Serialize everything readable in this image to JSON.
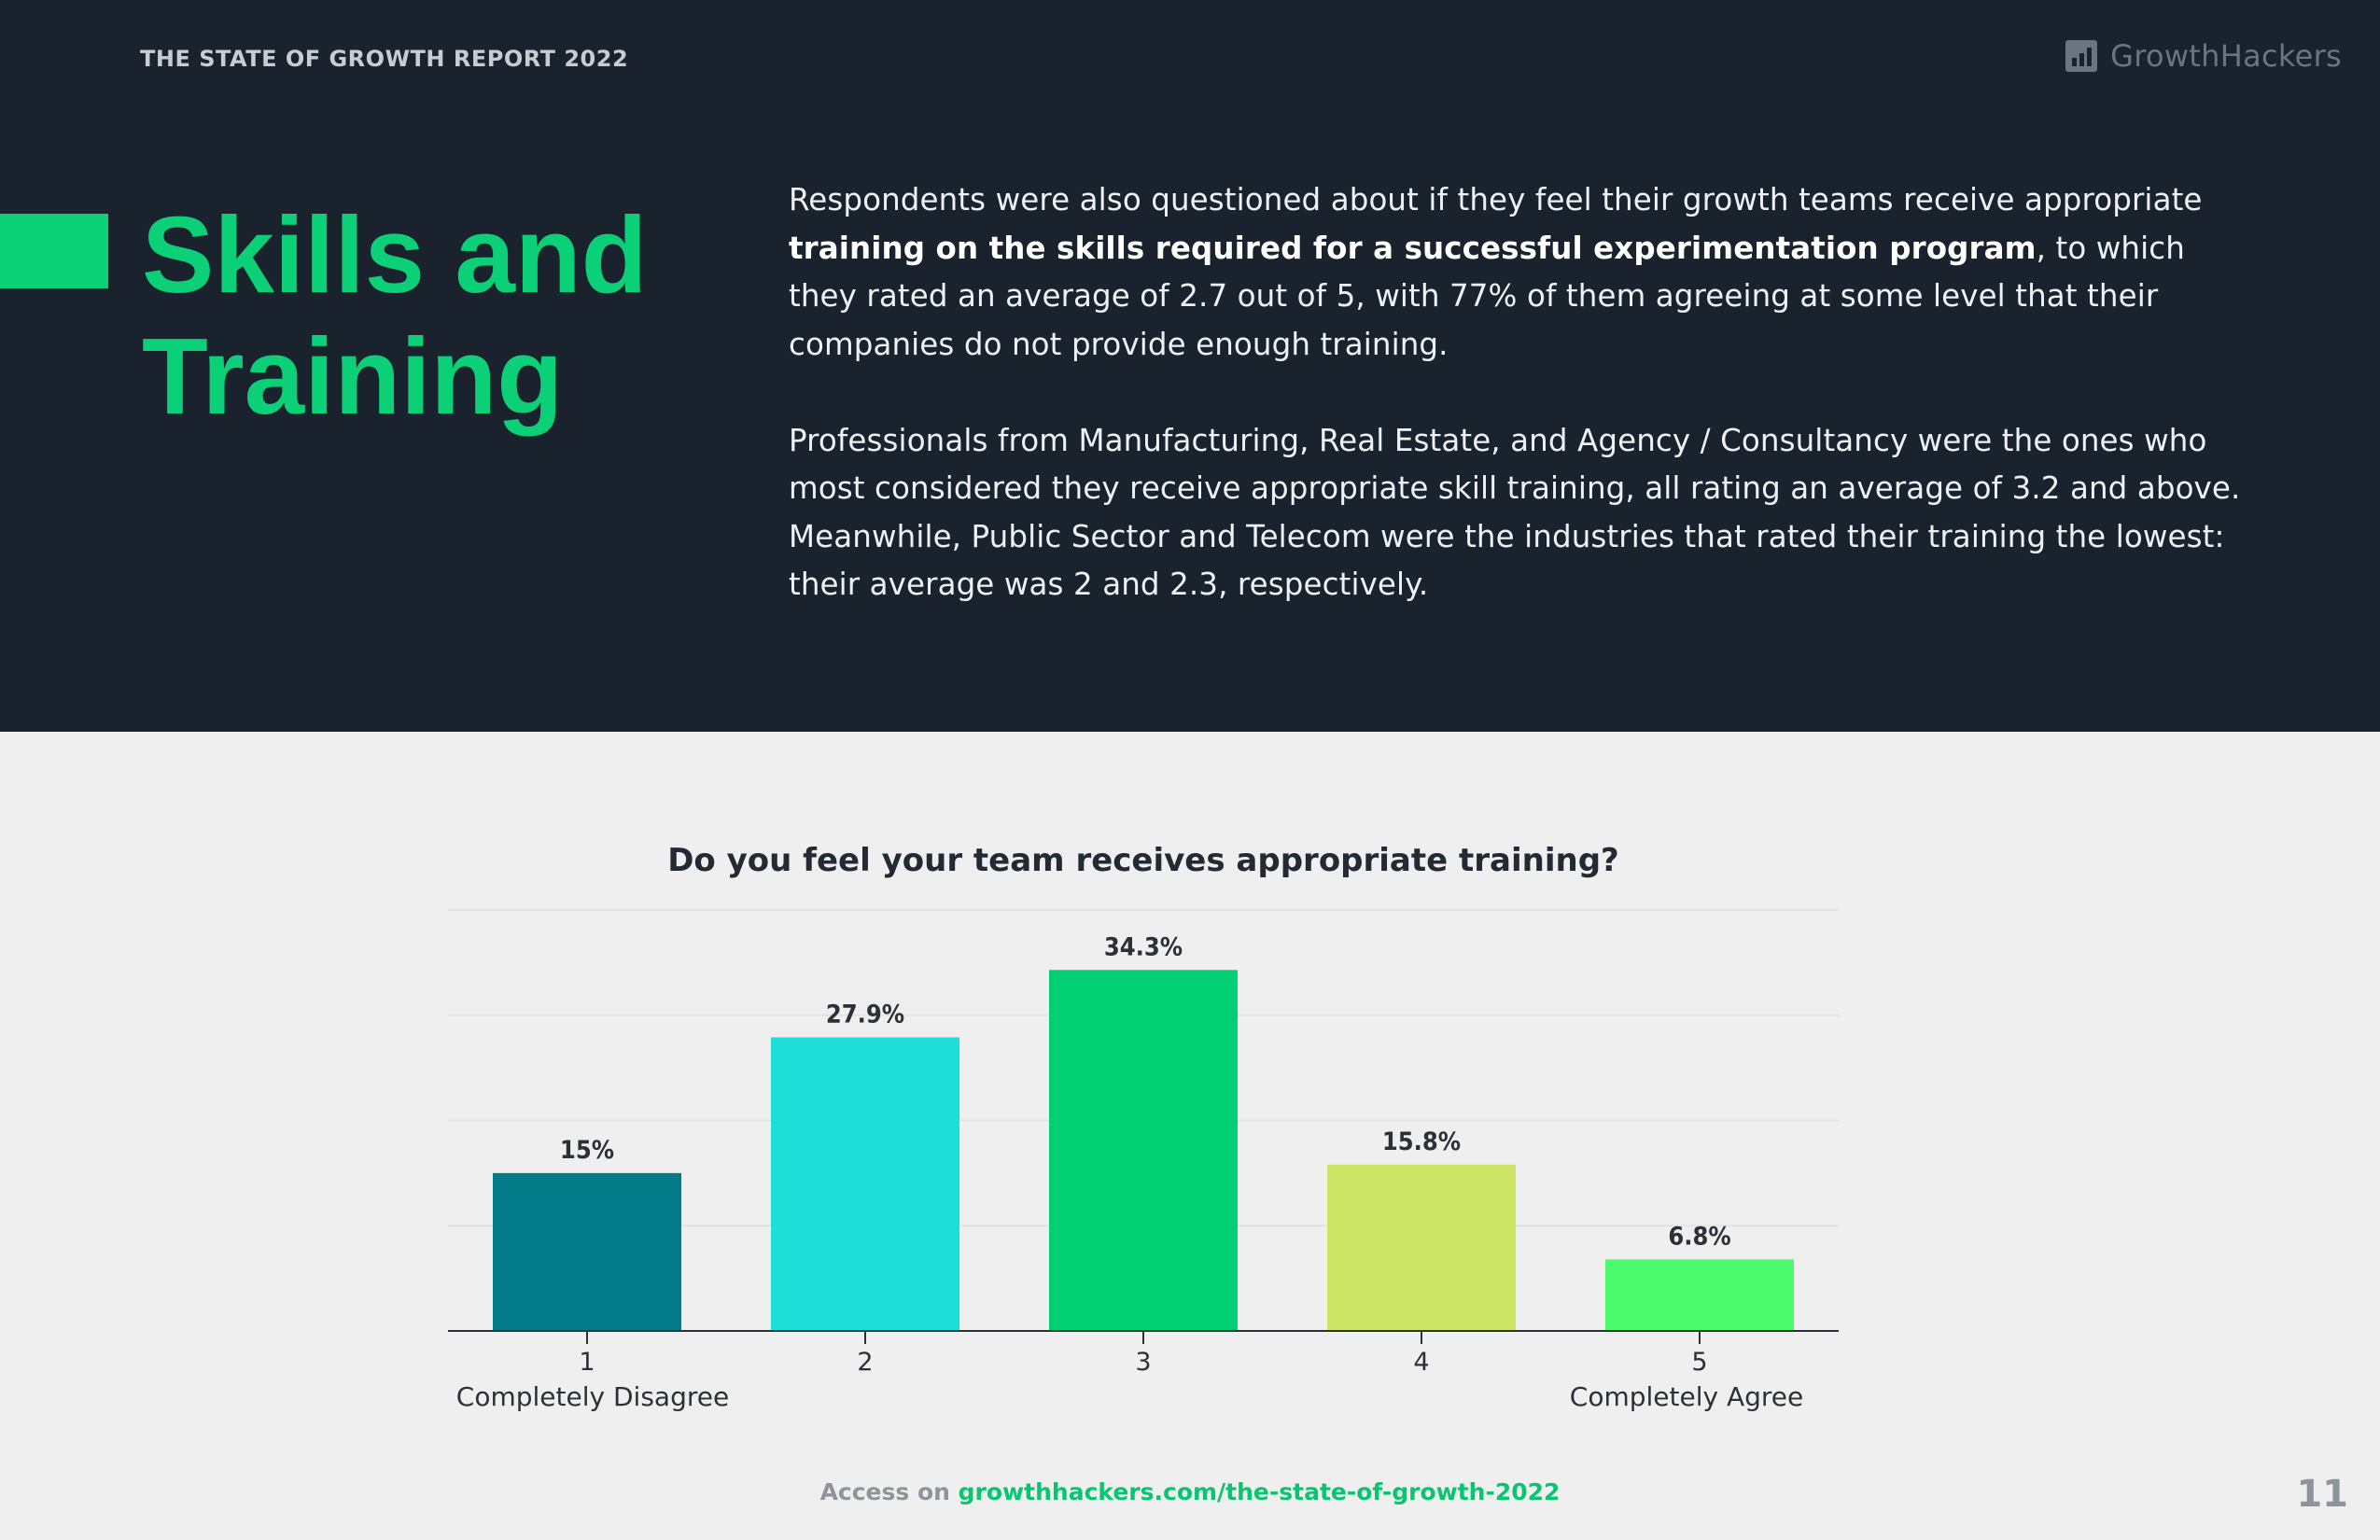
{
  "header": {
    "report_title": "THE STATE OF GROWTH REPORT 2022",
    "brand_name": "GrowthHackers",
    "brand_icon": "bar-chart-logo-icon"
  },
  "section": {
    "heading_line1": "Skills and",
    "heading_line2": "Training"
  },
  "body": {
    "p1_pre": "Respondents were also questioned about if they feel their growth teams receive appropriate ",
    "p1_bold": "training on the skills required for a successful experimentation program",
    "p1_post": ", to which they rated an average of 2.7 out of 5, with 77% of them agreeing at some level that their companies do not provide enough training.",
    "p2": "Professionals from Manufacturing, Real Estate, and Agency / Consultancy were the ones who most considered they receive appropriate skill training, all rating an average of 3.2 and above. Meanwhile, Public Sector and Telecom were the industries that rated their training the lowest: their average was 2 and 2.3, respectively."
  },
  "chart_data": {
    "type": "bar",
    "title": "Do you feel your team receives appropriate training?",
    "categories": [
      "1",
      "2",
      "3",
      "4",
      "5"
    ],
    "category_sublabels": [
      "Completely Disagree",
      "",
      "",
      "",
      "Completely Agree"
    ],
    "values": [
      15,
      27.9,
      34.3,
      15.8,
      6.8
    ],
    "value_labels": [
      "15%",
      "27.9%",
      "34.3%",
      "15.8%",
      "6.8%"
    ],
    "colors": [
      "#037b88",
      "#1edfd8",
      "#02cf74",
      "#cce565",
      "#4cfb6e"
    ],
    "ylim": [
      0,
      40
    ],
    "grid": true,
    "xlabel": "",
    "ylabel": ""
  },
  "footer": {
    "label": "Access on ",
    "link": "growthhackers.com/the-state-of-growth-2022",
    "page_number": "11"
  }
}
